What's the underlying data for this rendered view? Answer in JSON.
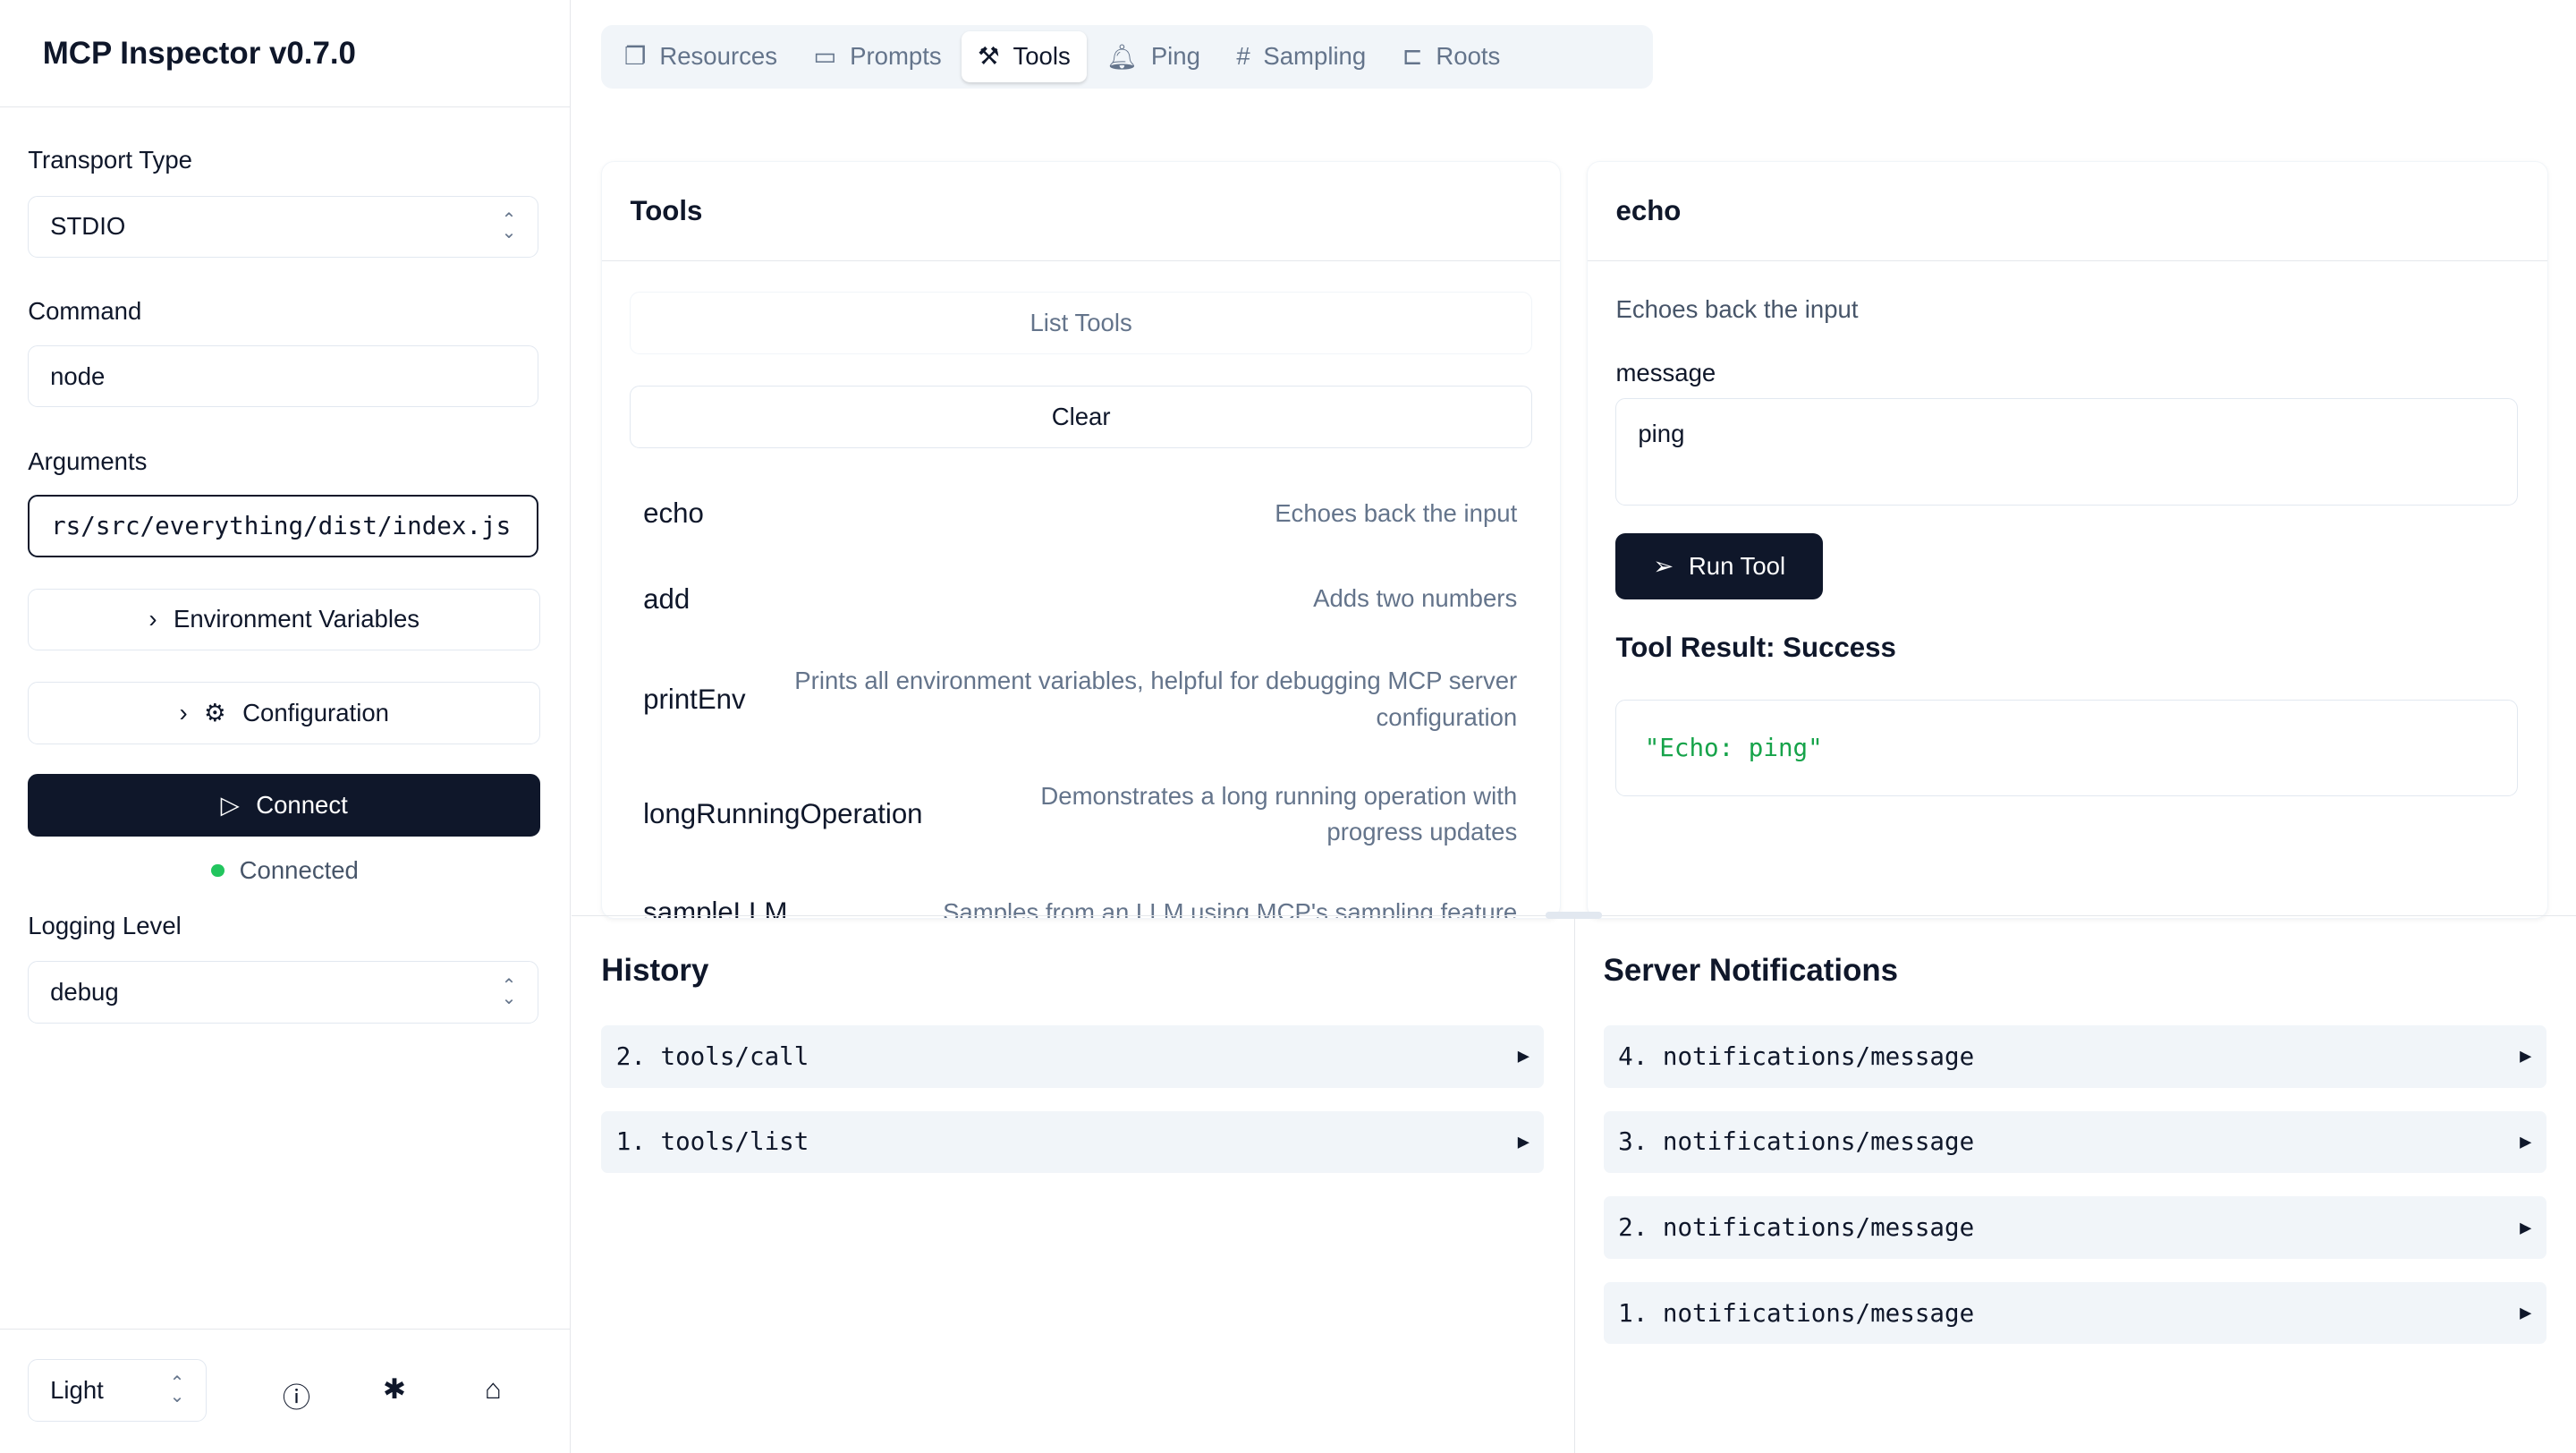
{
  "app": {
    "title": "MCP Inspector v0.7.0"
  },
  "sidebar": {
    "transport_label": "Transport Type",
    "transport_value": "STDIO",
    "command_label": "Command",
    "command_value": "node",
    "arguments_label": "Arguments",
    "arguments_value": "rs/src/everything/dist/index.js",
    "env_button": "Environment Variables",
    "config_button": "Configuration",
    "connect_button": "Connect",
    "status": "Connected",
    "status_color": "#22c55e",
    "logging_label": "Logging Level",
    "logging_value": "debug",
    "theme_value": "Light"
  },
  "tabs": [
    {
      "label": "Resources",
      "icon": "files-icon"
    },
    {
      "label": "Prompts",
      "icon": "message-icon"
    },
    {
      "label": "Tools",
      "icon": "hammer-icon",
      "active": true
    },
    {
      "label": "Ping",
      "icon": "bell-icon"
    },
    {
      "label": "Sampling",
      "icon": "hash-icon"
    },
    {
      "label": "Roots",
      "icon": "folder-tree-icon"
    }
  ],
  "tools_panel": {
    "title": "Tools",
    "list_button": "List Tools",
    "clear_button": "Clear",
    "tools": [
      {
        "name": "echo",
        "desc": "Echoes back the input"
      },
      {
        "name": "add",
        "desc": "Adds two numbers"
      },
      {
        "name": "printEnv",
        "desc": "Prints all environment variables, helpful for debugging MCP server configuration"
      },
      {
        "name": "longRunningOperation",
        "desc": "Demonstrates a long running operation with progress updates"
      },
      {
        "name": "sampleLLM",
        "desc": "Samples from an LLM using MCP's sampling feature"
      }
    ]
  },
  "tool_detail": {
    "title": "echo",
    "description": "Echoes back the input",
    "param_label": "message",
    "param_value": "ping",
    "run_button": "Run Tool",
    "result_title": "Tool Result: Success",
    "result_value": "\"Echo: ping\""
  },
  "history": {
    "title": "History",
    "items": [
      "2. tools/call",
      "1. tools/list"
    ]
  },
  "notifications": {
    "title": "Server Notifications",
    "items": [
      "4. notifications/message",
      "3. notifications/message",
      "2. notifications/message",
      "1. notifications/message"
    ]
  }
}
